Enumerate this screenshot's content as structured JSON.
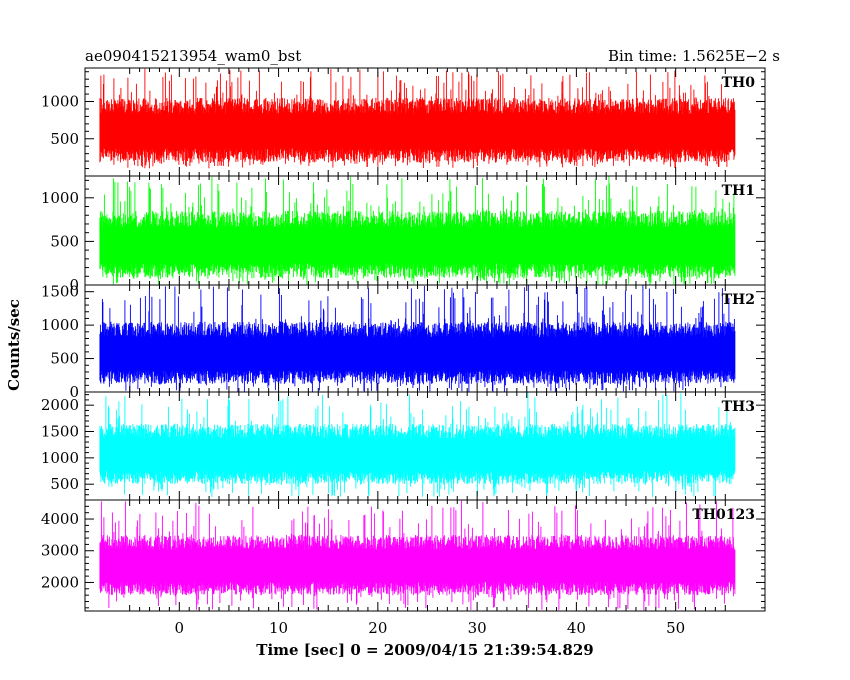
{
  "header": {
    "left_title": "ae090415213954_wam0_bst",
    "right_title": "Bin time: 1.5625E−2 s"
  },
  "axes": {
    "ylabel": "Counts/sec",
    "xlabel": "Time [sec] 0 = 2009/04/15 21:39:54.829",
    "x_ticks": [
      "0",
      "10",
      "20",
      "30",
      "40",
      "50"
    ]
  },
  "chart_data": [
    {
      "type": "line",
      "name": "TH0",
      "color": "#ff0000",
      "x_range": [
        -8,
        56
      ],
      "xlim": [
        -9.5,
        59
      ],
      "ylim": [
        0,
        1450
      ],
      "y_ticks": [
        500,
        1000
      ],
      "y_tick_labels": [
        "500",
        "1000"
      ],
      "level_low": 180,
      "level_high": 1050,
      "min": 100,
      "max": 1450
    },
    {
      "type": "line",
      "name": "TH1",
      "color": "#00ff00",
      "x_range": [
        -8,
        56
      ],
      "xlim": [
        -9.5,
        59
      ],
      "ylim": [
        0,
        1250
      ],
      "y_ticks": [
        0,
        500,
        1000
      ],
      "y_tick_labels": [
        "0",
        "500",
        "1000"
      ],
      "level_low": 80,
      "level_high": 850,
      "min": 0,
      "max": 1250
    },
    {
      "type": "line",
      "name": "TH2",
      "color": "#0000ff",
      "x_range": [
        -8,
        56
      ],
      "xlim": [
        -9.5,
        59
      ],
      "ylim": [
        0,
        1600
      ],
      "y_ticks": [
        0,
        500,
        1000,
        1500
      ],
      "y_tick_labels": [
        "0",
        "500",
        "1000",
        "1500"
      ],
      "level_low": 120,
      "level_high": 1050,
      "min": 0,
      "max": 1600
    },
    {
      "type": "line",
      "name": "TH3",
      "color": "#00ffff",
      "x_range": [
        -8,
        56
      ],
      "xlim": [
        -9.5,
        59
      ],
      "ylim": [
        200,
        2250
      ],
      "y_ticks": [
        500,
        1000,
        1500,
        2000
      ],
      "y_tick_labels": [
        "500",
        "1000",
        "1500",
        "2000"
      ],
      "level_low": 500,
      "level_high": 1650,
      "min": 250,
      "max": 2250
    },
    {
      "type": "line",
      "name": "TH0123",
      "color": "#ff00ff",
      "x_range": [
        -8,
        56
      ],
      "xlim": [
        -9.5,
        59
      ],
      "ylim": [
        1100,
        4600
      ],
      "y_ticks": [
        2000,
        3000,
        4000
      ],
      "y_tick_labels": [
        "2000",
        "3000",
        "4000"
      ],
      "level_low": 1600,
      "level_high": 3500,
      "min": 1100,
      "max": 4600
    }
  ]
}
